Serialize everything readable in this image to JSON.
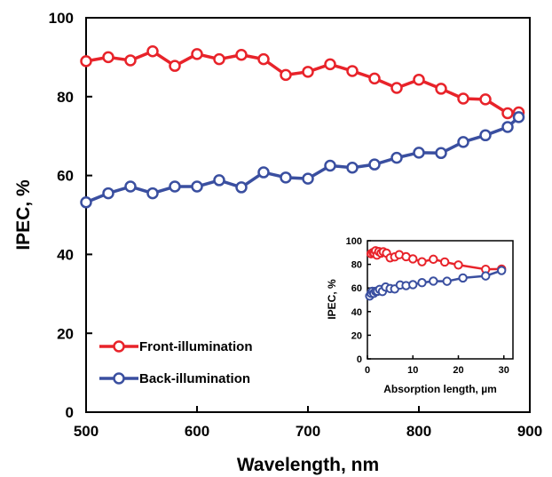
{
  "chart_data": [
    {
      "type": "line",
      "title": "",
      "xlabel": "Wavelength, nm",
      "ylabel": "IPEC, %",
      "xlim": [
        500,
        900
      ],
      "ylim": [
        0,
        100
      ],
      "x_ticks": [
        500,
        600,
        700,
        800,
        900
      ],
      "y_ticks": [
        0,
        20,
        40,
        60,
        80,
        100
      ],
      "grid": false,
      "legend_position": "bottom-left",
      "x": [
        500,
        520,
        540,
        560,
        580,
        600,
        620,
        640,
        660,
        680,
        700,
        720,
        740,
        760,
        780,
        800,
        820,
        840,
        860,
        880,
        890
      ],
      "series": [
        {
          "name": "Front-illumination",
          "color": "#e8232a",
          "values": [
            89,
            90,
            89.2,
            91.5,
            87.8,
            90.8,
            89.5,
            90.6,
            89.5,
            85.5,
            86.3,
            88.2,
            86.5,
            84.6,
            82.2,
            84.3,
            82,
            79.5,
            79.3,
            75.8,
            76
          ]
        },
        {
          "name": "Back-illumination",
          "color": "#3a4fa0",
          "values": [
            53.2,
            55.5,
            57.2,
            55.5,
            57.2,
            57.2,
            58.8,
            57,
            60.8,
            59.5,
            59.2,
            62.5,
            62,
            62.8,
            64.5,
            65.8,
            65.7,
            68.5,
            70.2,
            72.3,
            74.8
          ]
        }
      ]
    },
    {
      "type": "line",
      "title": "",
      "xlabel": "Absorption length, µm",
      "ylabel": "IPEC, %",
      "xlim": [
        0,
        32
      ],
      "ylim": [
        0,
        100
      ],
      "x_ticks": [
        0,
        10,
        20,
        30
      ],
      "y_ticks": [
        0,
        20,
        40,
        60,
        80,
        100
      ],
      "grid": false,
      "series": [
        {
          "name": "Front-illumination",
          "color": "#e8232a",
          "x": [
            0.8,
            1.2,
            1.5,
            1.8,
            2.1,
            2.5,
            3,
            3.5,
            4.2,
            5,
            6,
            7,
            8.5,
            10,
            12,
            14.5,
            17,
            20,
            26,
            29.5
          ],
          "values": [
            89,
            90,
            89.2,
            91.5,
            87.8,
            90.8,
            89.5,
            90.6,
            89.5,
            85.5,
            86.3,
            88.2,
            86.5,
            84.6,
            82.2,
            84.3,
            82,
            79.5,
            75.8,
            76
          ]
        },
        {
          "name": "Back-illumination",
          "color": "#3a4fa0",
          "x": [
            0.5,
            0.8,
            1.1,
            1.4,
            1.8,
            2.2,
            2.7,
            3.3,
            4,
            5,
            6,
            7.2,
            8.5,
            10,
            12,
            14.5,
            17.5,
            21,
            26,
            29.5
          ],
          "values": [
            53.2,
            55.5,
            57.2,
            55.5,
            57.2,
            57.2,
            58.8,
            57,
            60.8,
            59.5,
            59.2,
            62.5,
            62,
            62.8,
            64.5,
            65.8,
            65.7,
            68.5,
            70.2,
            74.8
          ]
        }
      ]
    }
  ]
}
